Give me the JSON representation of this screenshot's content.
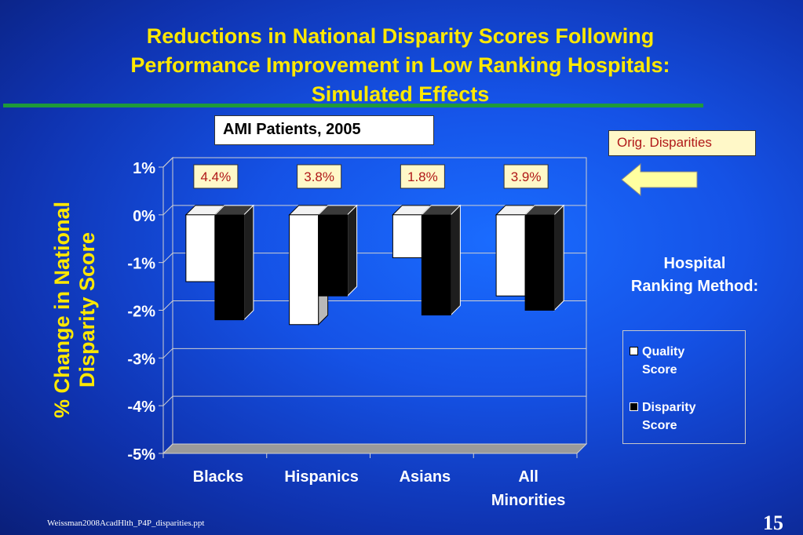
{
  "slide": {
    "title_line1": "Reductions in National Disparity Scores Following",
    "title_line2": "Performance Improvement in Low Ranking Hospitals:",
    "title_line3": "Simulated Effects",
    "subtitle_box": "AMI Patients, 2005",
    "orig_box": "Orig. Disparities",
    "footer_file": "Weissman2008AcadHlth_P4P_disparities.ppt",
    "page_number": "15"
  },
  "chart_data": {
    "type": "bar",
    "ylabel_line1": "% Change in National",
    "ylabel_line2": "Disparity Score",
    "categories": [
      {
        "line1": "Blacks",
        "line2": ""
      },
      {
        "line1": "Hispanics",
        "line2": ""
      },
      {
        "line1": "Asians",
        "line2": ""
      },
      {
        "line1": "All",
        "line2": "Minorities"
      }
    ],
    "yticks": [
      "1%",
      "0%",
      "-1%",
      "-2%",
      "-3%",
      "-4%",
      "-5%"
    ],
    "ylim": [
      -5,
      1
    ],
    "orig_disparities": [
      "4.4%",
      "3.8%",
      "1.8%",
      "3.9%"
    ],
    "legend_title_line1": "Hospital",
    "legend_title_line2": "Ranking Method:",
    "series": [
      {
        "name_line1": "Quality",
        "name_line2": "Score",
        "color": "#ffffff",
        "values": [
          -1.4,
          -2.3,
          -0.9,
          -1.7
        ]
      },
      {
        "name_line1": "Disparity",
        "name_line2": "Score",
        "color": "#000000",
        "values": [
          -2.2,
          -1.7,
          -2.1,
          -2.0
        ]
      }
    ],
    "grid": true
  },
  "colors": {
    "title": "#ffe800",
    "callout_fill": "#fff8c8",
    "callout_text": "#b01818",
    "arrow_fill": "#ffffa0"
  }
}
